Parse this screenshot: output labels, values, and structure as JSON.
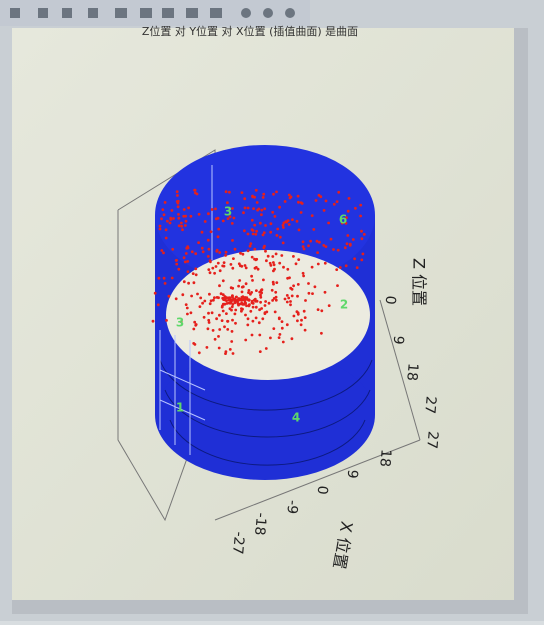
{
  "window": {
    "title": "Z位置 对 Y位置 对 X位置 (插值曲面) 是曲面"
  },
  "plot": {
    "z_axis_label": "Z 位置",
    "x_axis_label": "X 位置",
    "z_ticks": [
      "0",
      "9",
      "18",
      "27"
    ],
    "x_ticks": [
      "27",
      "18",
      "9",
      "0",
      "-9",
      "-18",
      "-27"
    ],
    "point_labels": [
      "3",
      "6",
      "2",
      "3",
      "1",
      "4"
    ]
  }
}
